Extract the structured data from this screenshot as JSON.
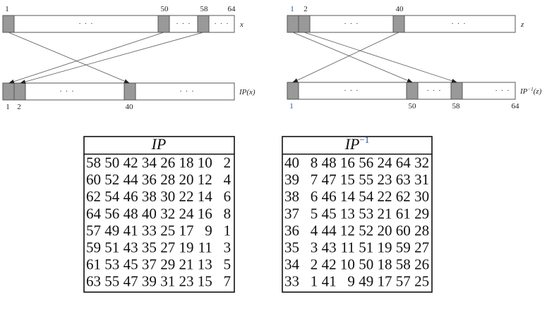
{
  "diagram_ip": {
    "input_label": "x",
    "output_label": "IP(x)",
    "input_positions": [
      "1",
      "50",
      "58",
      "64"
    ],
    "output_positions": [
      "1",
      "2",
      "40"
    ],
    "ellipsis": "· · ·"
  },
  "diagram_ip_inverse": {
    "input_label": "z",
    "output_label": "IP",
    "output_label_sup": "−1",
    "output_label_arg": "(z)",
    "input_positions": [
      "1",
      "2",
      "40"
    ],
    "output_positions": [
      "1",
      "50",
      "58",
      "64"
    ],
    "ellipsis": "· · ·",
    "highlight_color": "#1f4e9c"
  },
  "table_ip": {
    "title": "IP",
    "rows": [
      [
        58,
        50,
        42,
        34,
        26,
        18,
        10,
        2
      ],
      [
        60,
        52,
        44,
        36,
        28,
        20,
        12,
        4
      ],
      [
        62,
        54,
        46,
        38,
        30,
        22,
        14,
        6
      ],
      [
        64,
        56,
        48,
        40,
        32,
        24,
        16,
        8
      ],
      [
        57,
        49,
        41,
        33,
        25,
        17,
        9,
        1
      ],
      [
        59,
        51,
        43,
        35,
        27,
        19,
        11,
        3
      ],
      [
        61,
        53,
        45,
        37,
        29,
        21,
        13,
        5
      ],
      [
        63,
        55,
        47,
        39,
        31,
        23,
        15,
        7
      ]
    ]
  },
  "table_ip_inverse": {
    "title": "IP",
    "title_sup": "−1",
    "rows": [
      [
        40,
        8,
        48,
        16,
        56,
        24,
        64,
        32
      ],
      [
        39,
        7,
        47,
        15,
        55,
        23,
        63,
        31
      ],
      [
        38,
        6,
        46,
        14,
        54,
        22,
        62,
        30
      ],
      [
        37,
        5,
        45,
        13,
        53,
        21,
        61,
        29
      ],
      [
        36,
        4,
        44,
        12,
        52,
        20,
        60,
        28
      ],
      [
        35,
        3,
        43,
        11,
        51,
        19,
        59,
        27
      ],
      [
        34,
        2,
        42,
        10,
        50,
        18,
        58,
        26
      ],
      [
        33,
        1,
        41,
        9,
        49,
        17,
        57,
        25
      ]
    ]
  }
}
